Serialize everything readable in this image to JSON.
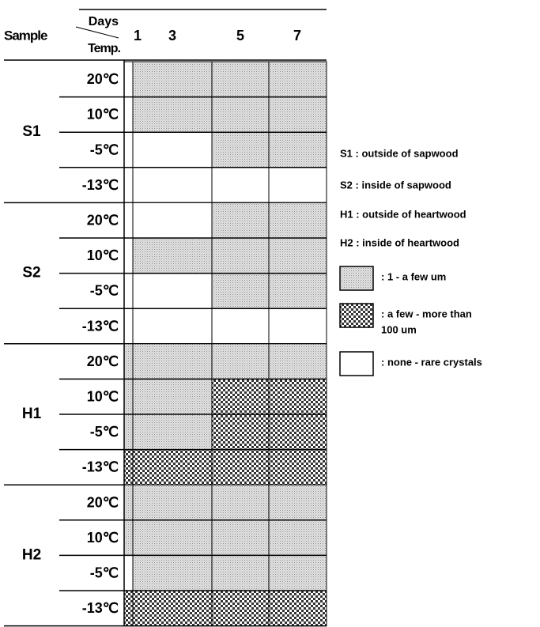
{
  "header": {
    "sample": "Sample",
    "days": "Days",
    "temp": "Temp.",
    "day_labels": [
      "1",
      "3",
      "5",
      "7"
    ]
  },
  "groups": [
    {
      "name": "S1",
      "rows": [
        {
          "temp": "20℃",
          "cells": [
            2,
            0,
            0,
            0
          ]
        },
        {
          "temp": "10℃",
          "cells": [
            2,
            0,
            0,
            0
          ]
        },
        {
          "temp": "-5℃",
          "cells": [
            2,
            2,
            0,
            0
          ]
        },
        {
          "temp": "-13℃",
          "cells": [
            2,
            2,
            2,
            2
          ]
        }
      ]
    },
    {
      "name": "S2",
      "rows": [
        {
          "temp": "20℃",
          "cells": [
            2,
            2,
            0,
            0
          ]
        },
        {
          "temp": "10℃",
          "cells": [
            2,
            0,
            0,
            0
          ]
        },
        {
          "temp": "-5℃",
          "cells": [
            2,
            2,
            0,
            0
          ]
        },
        {
          "temp": "-13℃",
          "cells": [
            2,
            2,
            2,
            2
          ]
        }
      ]
    },
    {
      "name": "H1",
      "rows": [
        {
          "temp": "20℃",
          "cells": [
            0,
            0,
            0,
            0
          ]
        },
        {
          "temp": "10℃",
          "cells": [
            0,
            0,
            1,
            1
          ]
        },
        {
          "temp": "-5℃",
          "cells": [
            0,
            0,
            1,
            1
          ]
        },
        {
          "temp": "-13℃",
          "cells": [
            1,
            1,
            1,
            1
          ]
        }
      ]
    },
    {
      "name": "H2",
      "rows": [
        {
          "temp": "20℃",
          "cells": [
            0,
            0,
            0,
            0
          ]
        },
        {
          "temp": "10℃",
          "cells": [
            0,
            0,
            0,
            0
          ]
        },
        {
          "temp": "-5℃",
          "cells": [
            2,
            0,
            0,
            0
          ]
        },
        {
          "temp": "-13℃",
          "cells": [
            1,
            1,
            1,
            1
          ]
        }
      ]
    }
  ],
  "abbreviations": [
    "S1 : outside of sapwood",
    "S2 : inside of sapwood",
    "H1 : outside of heartwood",
    "H2 : inside of heartwood"
  ],
  "legend": [
    {
      "label_lines": [
        ": 1 - a few um"
      ]
    },
    {
      "label_lines": [
        ": a few - more than",
        "100 um"
      ]
    },
    {
      "label_lines": [
        ": none - rare crystals"
      ]
    }
  ]
}
